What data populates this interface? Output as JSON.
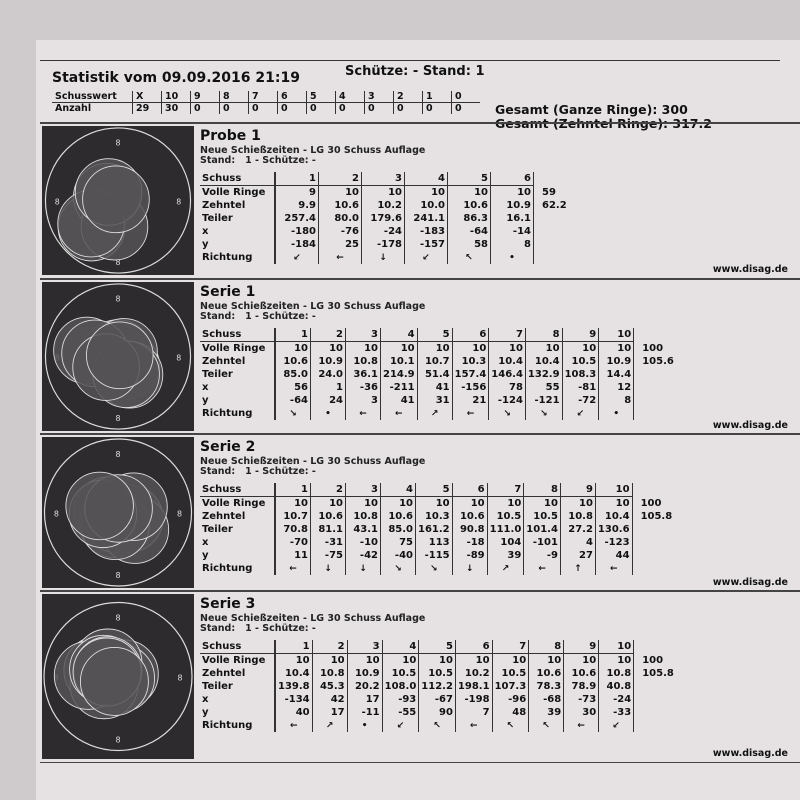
{
  "header": {
    "title": "Statistik vom 09.09.2016 21:19",
    "shooter": "Schütze: -  Stand: 1",
    "summary": {
      "row1_label": "Schusswert",
      "row2_label": "Anzahl",
      "values": [
        "X",
        "10",
        "9",
        "8",
        "7",
        "6",
        "5",
        "4",
        "3",
        "2",
        "1",
        "0"
      ],
      "counts": [
        "29",
        "30",
        "0",
        "0",
        "0",
        "0",
        "0",
        "0",
        "0",
        "0",
        "0",
        "0"
      ]
    },
    "total_full": "Gesamt (Ganze Ringe): 300",
    "total_tenth": "Gesamt (Zehntel Ringe): 317.2"
  },
  "row_labels": [
    "Schuss",
    "Volle Ringe",
    "Zehntel",
    "Teiler",
    "x",
    "y",
    "Richtung"
  ],
  "target_ring_label": "8",
  "footer_url": "www.disag.de",
  "sections": [
    {
      "name": "Probe 1",
      "subtitle": "Neue Schießzeiten - LG 30 Schuss Auflage",
      "stand": "Stand:   1 - Schütze: -",
      "shots": [
        "1",
        "2",
        "3",
        "4",
        "5",
        "6"
      ],
      "volle": [
        "9",
        "10",
        "10",
        "10",
        "10",
        "10"
      ],
      "zehntel": [
        "9.9",
        "10.6",
        "10.2",
        "10.0",
        "10.6",
        "10.9"
      ],
      "teiler": [
        "257.4",
        "80.0",
        "179.6",
        "241.1",
        "86.3",
        "16.1"
      ],
      "x": [
        "-180",
        "-76",
        "-24",
        "-183",
        "-64",
        "-14"
      ],
      "y": [
        "-184",
        "25",
        "-178",
        "-157",
        "58",
        "8"
      ],
      "richtung": [
        "↙",
        "←",
        "↓",
        "↙",
        "↖",
        "•"
      ],
      "sum_volle": "59",
      "sum_zehntel": "62.2"
    },
    {
      "name": "Serie 1",
      "subtitle": "Neue Schießzeiten - LG 30 Schuss Auflage",
      "stand": "Stand:   1 - Schütze: -",
      "shots": [
        "1",
        "2",
        "3",
        "4",
        "5",
        "6",
        "7",
        "8",
        "9",
        "10"
      ],
      "volle": [
        "10",
        "10",
        "10",
        "10",
        "10",
        "10",
        "10",
        "10",
        "10",
        "10"
      ],
      "zehntel": [
        "10.6",
        "10.9",
        "10.8",
        "10.1",
        "10.7",
        "10.3",
        "10.4",
        "10.4",
        "10.5",
        "10.9"
      ],
      "teiler": [
        "85.0",
        "24.0",
        "36.1",
        "214.9",
        "51.4",
        "157.4",
        "146.4",
        "132.9",
        "108.3",
        "14.4"
      ],
      "x": [
        "56",
        "1",
        "-36",
        "-211",
        "41",
        "-156",
        "78",
        "55",
        "-81",
        "12"
      ],
      "y": [
        "-64",
        "24",
        "3",
        "41",
        "31",
        "21",
        "-124",
        "-121",
        "-72",
        "8"
      ],
      "richtung": [
        "↘",
        "•",
        "←",
        "←",
        "↗",
        "←",
        "↘",
        "↘",
        "↙",
        "•"
      ],
      "sum_volle": "100",
      "sum_zehntel": "105.6"
    },
    {
      "name": "Serie 2",
      "subtitle": "Neue Schießzeiten - LG 30 Schuss Auflage",
      "stand": "Stand:   1 - Schütze: -",
      "shots": [
        "1",
        "2",
        "3",
        "4",
        "5",
        "6",
        "7",
        "8",
        "9",
        "10"
      ],
      "volle": [
        "10",
        "10",
        "10",
        "10",
        "10",
        "10",
        "10",
        "10",
        "10",
        "10"
      ],
      "zehntel": [
        "10.7",
        "10.6",
        "10.8",
        "10.6",
        "10.3",
        "10.6",
        "10.5",
        "10.5",
        "10.8",
        "10.4"
      ],
      "teiler": [
        "70.8",
        "81.1",
        "43.1",
        "85.0",
        "161.2",
        "90.8",
        "111.0",
        "101.4",
        "27.2",
        "130.6"
      ],
      "x": [
        "-70",
        "-31",
        "-10",
        "75",
        "113",
        "-18",
        "104",
        "-101",
        "4",
        "-123"
      ],
      "y": [
        "11",
        "-75",
        "-42",
        "-40",
        "-115",
        "-89",
        "39",
        "-9",
        "27",
        "44"
      ],
      "richtung": [
        "←",
        "↓",
        "↓",
        "↘",
        "↘",
        "↓",
        "↗",
        "←",
        "↑",
        "←"
      ],
      "sum_volle": "100",
      "sum_zehntel": "105.8"
    },
    {
      "name": "Serie 3",
      "subtitle": "Neue Schießzeiten - LG 30 Schuss Auflage",
      "stand": "Stand:   1 - Schütze: -",
      "shots": [
        "1",
        "2",
        "3",
        "4",
        "5",
        "6",
        "7",
        "8",
        "9",
        "10"
      ],
      "volle": [
        "10",
        "10",
        "10",
        "10",
        "10",
        "10",
        "10",
        "10",
        "10",
        "10"
      ],
      "zehntel": [
        "10.4",
        "10.8",
        "10.9",
        "10.5",
        "10.5",
        "10.2",
        "10.5",
        "10.6",
        "10.6",
        "10.8"
      ],
      "teiler": [
        "139.8",
        "45.3",
        "20.2",
        "108.0",
        "112.2",
        "198.1",
        "107.3",
        "78.3",
        "78.9",
        "40.8"
      ],
      "x": [
        "-134",
        "42",
        "17",
        "-93",
        "-67",
        "-198",
        "-96",
        "-68",
        "-73",
        "-24"
      ],
      "y": [
        "40",
        "17",
        "-11",
        "-55",
        "90",
        "7",
        "48",
        "39",
        "30",
        "-33"
      ],
      "richtung": [
        "←",
        "↗",
        "•",
        "↙",
        "↖",
        "←",
        "↖",
        "↖",
        "←",
        "↙"
      ],
      "sum_volle": "100",
      "sum_zehntel": "105.8"
    }
  ]
}
